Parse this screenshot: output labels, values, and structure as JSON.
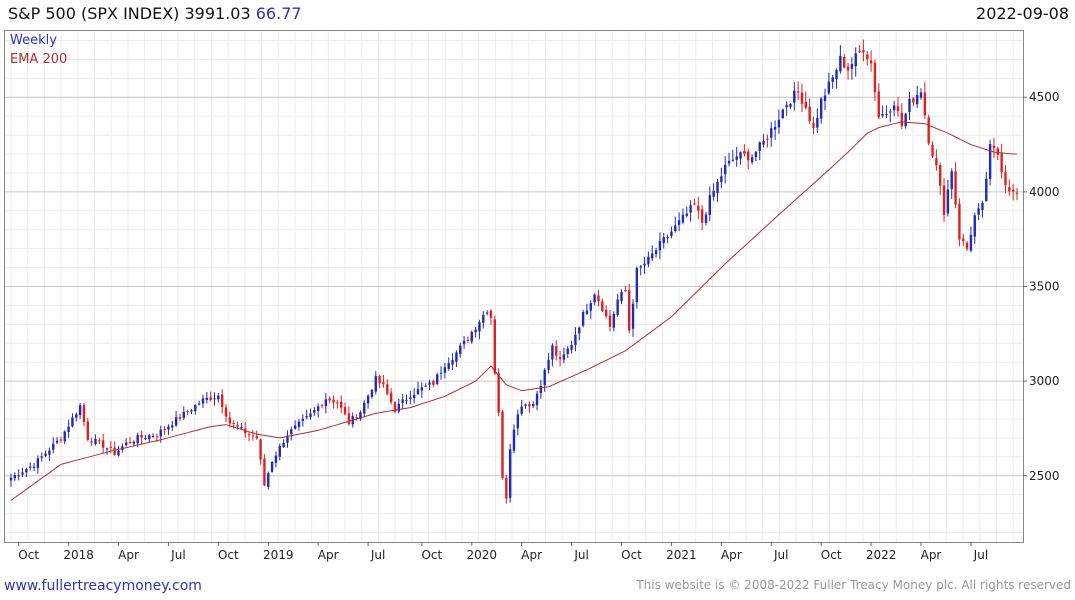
{
  "header": {
    "title": "S&P 500 (SPX INDEX) 3991.03",
    "change": "66.77",
    "date": "2022-09-08"
  },
  "footer": {
    "link": "www.fullertreacymoney.com",
    "copyright": "This website is © 2008-2022 Fuller Treacy Money plc. All rights reserved"
  },
  "colors": {
    "up": "#1f2bb8",
    "down": "#e02020",
    "ema": "#b03030",
    "grid_major": "#c8c8c8",
    "grid_minor": "#ececec",
    "axis_text": "#222222"
  },
  "chart_data": {
    "type": "candlestick",
    "title": "S&P 500 (SPX INDEX) 3991.03 66.77",
    "frequency": "Weekly",
    "legend": [
      "Weekly",
      "EMA 200"
    ],
    "ylim": [
      2150,
      4850
    ],
    "xlim": [
      0,
      262
    ],
    "y_ticks": [
      2500,
      3000,
      3500,
      4000,
      4500
    ],
    "x_ticks": [
      {
        "label": "Oct",
        "pos": 2
      },
      {
        "label": "2018",
        "pos": 15
      },
      {
        "label": "Apr",
        "pos": 28
      },
      {
        "label": "Jul",
        "pos": 41
      },
      {
        "label": "Oct",
        "pos": 54
      },
      {
        "label": "2019",
        "pos": 67
      },
      {
        "label": "Apr",
        "pos": 80
      },
      {
        "label": "Jul",
        "pos": 93
      },
      {
        "label": "Oct",
        "pos": 107
      },
      {
        "label": "2020",
        "pos": 120
      },
      {
        "label": "Apr",
        "pos": 133
      },
      {
        "label": "Jul",
        "pos": 146
      },
      {
        "label": "Oct",
        "pos": 159
      },
      {
        "label": "2021",
        "pos": 172
      },
      {
        "label": "Apr",
        "pos": 185
      },
      {
        "label": "Jul",
        "pos": 198
      },
      {
        "label": "Oct",
        "pos": 211
      },
      {
        "label": "2022",
        "pos": 224
      },
      {
        "label": "Apr",
        "pos": 237
      },
      {
        "label": "Jul",
        "pos": 250
      }
    ],
    "close_anchors": [
      [
        0,
        2490
      ],
      [
        6,
        2560
      ],
      [
        13,
        2700
      ],
      [
        18,
        2870
      ],
      [
        20,
        2700
      ],
      [
        24,
        2660
      ],
      [
        27,
        2620
      ],
      [
        30,
        2670
      ],
      [
        33,
        2700
      ],
      [
        38,
        2720
      ],
      [
        44,
        2810
      ],
      [
        50,
        2900
      ],
      [
        54,
        2925
      ],
      [
        57,
        2780
      ],
      [
        61,
        2730
      ],
      [
        64,
        2700
      ],
      [
        66,
        2450
      ],
      [
        68,
        2580
      ],
      [
        72,
        2720
      ],
      [
        78,
        2820
      ],
      [
        82,
        2910
      ],
      [
        85,
        2890
      ],
      [
        88,
        2780
      ],
      [
        91,
        2840
      ],
      [
        95,
        3010
      ],
      [
        97,
        2970
      ],
      [
        100,
        2850
      ],
      [
        104,
        2930
      ],
      [
        107,
        2960
      ],
      [
        110,
        2990
      ],
      [
        113,
        3090
      ],
      [
        116,
        3150
      ],
      [
        118,
        3200
      ],
      [
        121,
        3290
      ],
      [
        124,
        3380
      ],
      [
        125,
        3340
      ],
      [
        126,
        3050
      ],
      [
        127,
        2840
      ],
      [
        128,
        2480
      ],
      [
        129,
        2390
      ],
      [
        130,
        2650
      ],
      [
        131,
        2760
      ],
      [
        133,
        2880
      ],
      [
        136,
        2880
      ],
      [
        139,
        3050
      ],
      [
        141,
        3180
      ],
      [
        143,
        3100
      ],
      [
        146,
        3200
      ],
      [
        149,
        3350
      ],
      [
        152,
        3470
      ],
      [
        154,
        3390
      ],
      [
        156,
        3290
      ],
      [
        158,
        3430
      ],
      [
        160,
        3480
      ],
      [
        161,
        3270
      ],
      [
        163,
        3580
      ],
      [
        166,
        3640
      ],
      [
        169,
        3720
      ],
      [
        172,
        3790
      ],
      [
        175,
        3860
      ],
      [
        178,
        3930
      ],
      [
        180,
        3840
      ],
      [
        182,
        3960
      ],
      [
        186,
        4130
      ],
      [
        189,
        4190
      ],
      [
        193,
        4190
      ],
      [
        196,
        4260
      ],
      [
        199,
        4360
      ],
      [
        202,
        4470
      ],
      [
        205,
        4530
      ],
      [
        207,
        4450
      ],
      [
        209,
        4330
      ],
      [
        211,
        4480
      ],
      [
        214,
        4600
      ],
      [
        216,
        4700
      ],
      [
        218,
        4650
      ],
      [
        220,
        4710
      ],
      [
        222,
        4760
      ],
      [
        224,
        4680
      ],
      [
        226,
        4400
      ],
      [
        228,
        4420
      ],
      [
        230,
        4480
      ],
      [
        232,
        4350
      ],
      [
        234,
        4470
      ],
      [
        237,
        4540
      ],
      [
        239,
        4280
      ],
      [
        241,
        4130
      ],
      [
        243,
        3900
      ],
      [
        245,
        4120
      ],
      [
        247,
        3760
      ],
      [
        249,
        3700
      ],
      [
        251,
        3870
      ],
      [
        253,
        3920
      ],
      [
        255,
        4230
      ],
      [
        257,
        4200
      ],
      [
        259,
        4050
      ],
      [
        261,
        3991
      ]
    ],
    "ema200_anchors": [
      [
        0,
        2370
      ],
      [
        13,
        2560
      ],
      [
        26,
        2630
      ],
      [
        39,
        2690
      ],
      [
        52,
        2760
      ],
      [
        56,
        2770
      ],
      [
        64,
        2720
      ],
      [
        70,
        2700
      ],
      [
        80,
        2740
      ],
      [
        95,
        2830
      ],
      [
        104,
        2860
      ],
      [
        113,
        2920
      ],
      [
        121,
        3000
      ],
      [
        125,
        3080
      ],
      [
        129,
        2980
      ],
      [
        133,
        2950
      ],
      [
        140,
        2970
      ],
      [
        150,
        3060
      ],
      [
        160,
        3160
      ],
      [
        172,
        3340
      ],
      [
        186,
        3620
      ],
      [
        200,
        3880
      ],
      [
        211,
        4080
      ],
      [
        218,
        4210
      ],
      [
        223,
        4310
      ],
      [
        226,
        4340
      ],
      [
        232,
        4370
      ],
      [
        238,
        4360
      ],
      [
        244,
        4310
      ],
      [
        250,
        4250
      ],
      [
        256,
        4210
      ],
      [
        261,
        4200
      ]
    ]
  }
}
